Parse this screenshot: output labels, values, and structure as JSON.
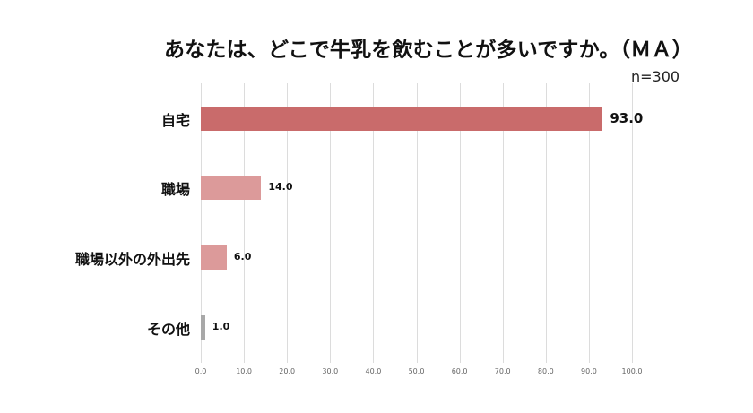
{
  "chart_data": {
    "type": "bar",
    "orientation": "horizontal",
    "title": "あなたは、どこで牛乳を飲むことが多いですか。（ＭＡ）",
    "annotation": "n=300",
    "categories": [
      "自宅",
      "職場",
      "職場以外の外出先",
      "その他"
    ],
    "values": [
      93.0,
      14.0,
      6.0,
      1.0
    ],
    "value_labels": [
      "93.0",
      "14.0",
      "6.0",
      "1.0"
    ],
    "bar_colors": [
      "#c96b6b",
      "#dc9a9a",
      "#dc9a9a",
      "#a8a8a8"
    ],
    "xlabel": "",
    "ylabel": "",
    "xlim": [
      0,
      100
    ],
    "xticks": [
      "0.0",
      "10.0",
      "20.0",
      "30.0",
      "40.0",
      "50.0",
      "60.0",
      "70.0",
      "80.0",
      "90.0",
      "100.0"
    ],
    "grid": true,
    "legend": null
  }
}
